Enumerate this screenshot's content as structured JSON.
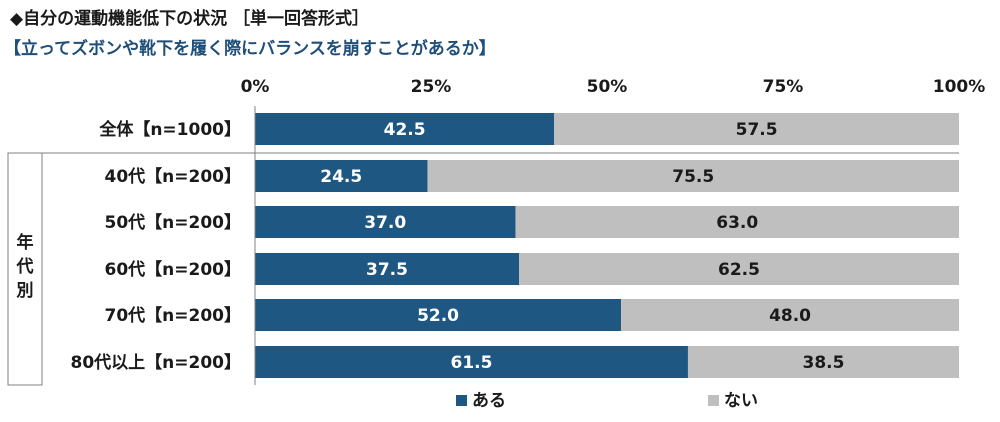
{
  "title": "◆自分の運動機能低下の状況 ［単一回答形式］",
  "subtitle": "【立ってズボンや靴下を履く際にバランスを崩すことがあるか】",
  "colors": {
    "aru": "#1f5783",
    "nai": "#bfbfbf"
  },
  "chart_data": {
    "type": "bar",
    "orientation": "horizontal",
    "stacked": true,
    "xlim": [
      0,
      100
    ],
    "x_ticks": [
      "0%",
      "25%",
      "50%",
      "75%",
      "100%"
    ],
    "categories": [
      "全体【n=1000】",
      "40代【n=200】",
      "50代【n=200】",
      "60代【n=200】",
      "70代【n=200】",
      "80代以上【n=200】"
    ],
    "group_label": "年代別",
    "series": [
      {
        "name": "ある",
        "values": [
          42.5,
          24.5,
          37.0,
          37.5,
          52.0,
          61.5
        ],
        "labels": [
          "42.5",
          "24.5",
          "37.0",
          "37.5",
          "52.0",
          "61.5"
        ]
      },
      {
        "name": "ない",
        "values": [
          57.5,
          75.5,
          63.0,
          62.5,
          48.0,
          38.5
        ],
        "labels": [
          "57.5",
          "75.5",
          "63.0",
          "62.5",
          "48.0",
          "38.5"
        ]
      }
    ],
    "legend_position": "bottom"
  }
}
